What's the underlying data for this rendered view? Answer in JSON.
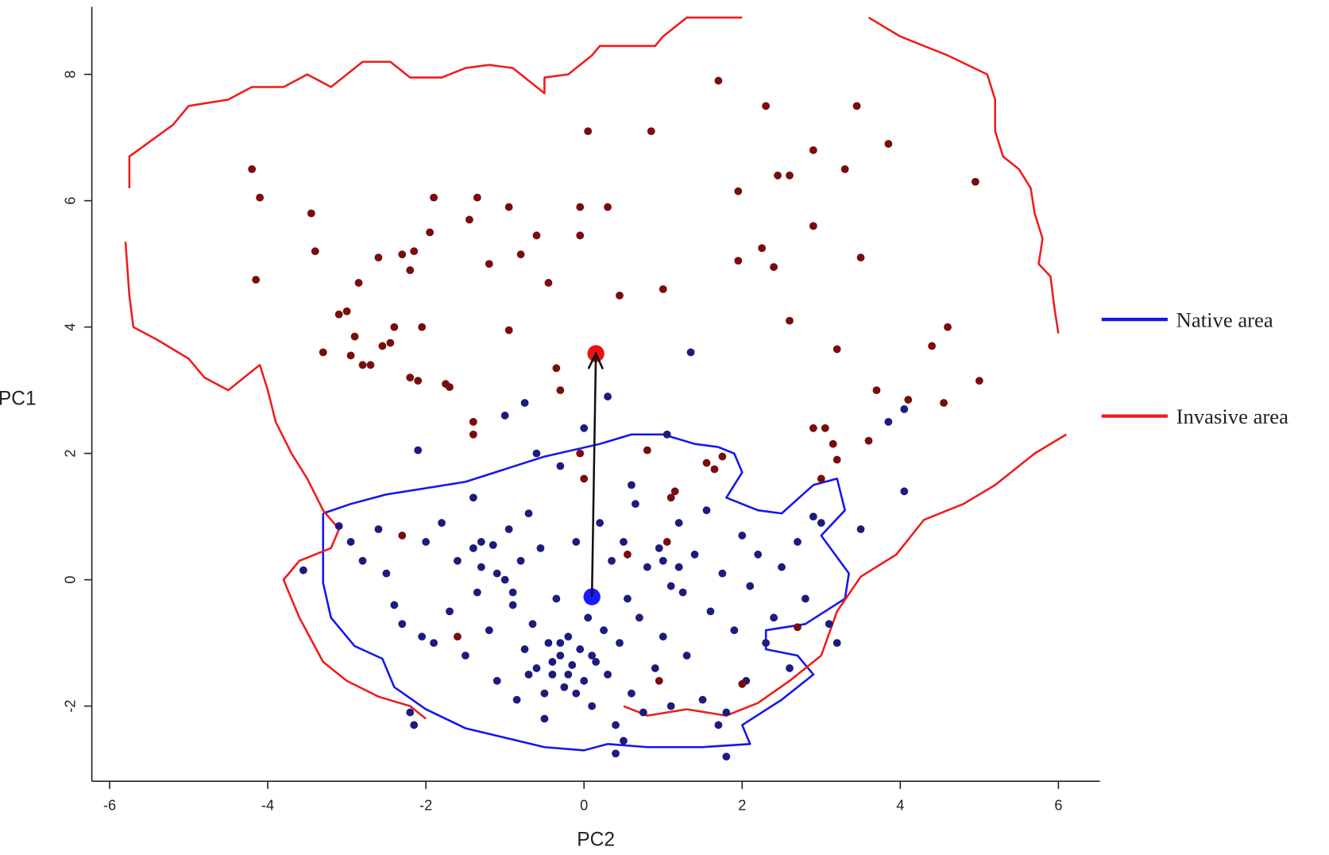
{
  "chart_data": {
    "type": "scatter",
    "x_label": "PC2",
    "y_label": "PC1",
    "xlim": [
      -6.225,
      6.525
    ],
    "ylim": [
      -3.19,
      9.07
    ],
    "xticks": [
      -6,
      -4,
      -2,
      0,
      2,
      4,
      6
    ],
    "yticks": [
      -2,
      0,
      2,
      4,
      6,
      8
    ],
    "legend": "right",
    "contours": [
      {
        "name": "Native area",
        "color": "#1515f0",
        "x": [
          -3.3,
          -2.95,
          -2.5,
          -2.0,
          -1.5,
          -1.0,
          -0.5,
          0.2,
          0.6,
          1.0,
          1.4,
          1.7,
          1.9,
          2.0,
          1.8,
          2.2,
          2.5,
          2.9,
          3.2,
          3.3,
          3.0,
          3.35,
          3.3,
          2.8,
          2.3,
          2.3,
          2.7,
          2.9,
          2.5,
          2.0,
          2.1,
          1.5,
          0.8,
          0.3,
          0.0,
          -0.5,
          -1.0,
          -1.5,
          -2.0,
          -2.4,
          -2.55,
          -2.9,
          -3.2,
          -3.3,
          -3.3,
          -3.3
        ],
        "y": [
          1.05,
          1.2,
          1.35,
          1.45,
          1.55,
          1.75,
          1.95,
          2.15,
          2.3,
          2.3,
          2.15,
          2.1,
          2.0,
          1.7,
          1.3,
          1.1,
          1.05,
          1.5,
          1.6,
          1.1,
          0.7,
          0.1,
          -0.3,
          -0.7,
          -0.8,
          -1.1,
          -1.2,
          -1.5,
          -1.9,
          -2.3,
          -2.6,
          -2.65,
          -2.65,
          -2.6,
          -2.7,
          -2.65,
          -2.5,
          -2.35,
          -2.05,
          -1.7,
          -1.25,
          -1.05,
          -0.6,
          -0.05,
          0.5,
          1.05
        ]
      },
      {
        "name": "Invasive area",
        "color": "#ee1c1c",
        "x": [
          -2.0,
          -2.2,
          -2.6,
          -3.0,
          -3.3,
          -3.6,
          -3.8,
          -3.6,
          -3.2,
          -3.1,
          -3.3,
          -3.5,
          -3.7,
          -3.9,
          -4.0,
          -4.1,
          -4.5,
          -4.8,
          -5.0,
          -5.4,
          -5.7,
          -5.75,
          -5.8,
          null,
          -5.75,
          -5.75,
          -5.2,
          -5.0,
          -4.5,
          -4.2,
          -3.8,
          -3.5,
          -3.2,
          -2.8,
          -2.45,
          -2.2,
          -1.8,
          -1.5,
          -1.2,
          -0.9,
          -0.5,
          -0.5,
          -0.2,
          0.1,
          0.2,
          0.9,
          1.0,
          1.3,
          2.0,
          null,
          3.6,
          4.0,
          4.6,
          5.1,
          5.2,
          5.2,
          5.3,
          5.5,
          5.65,
          5.7,
          5.8,
          5.75,
          5.9,
          5.95,
          6.0,
          null,
          6.1,
          5.7,
          5.2,
          4.8,
          4.3,
          3.95,
          3.5,
          3.2,
          3.0,
          2.6,
          2.2,
          1.8,
          1.3,
          0.8,
          0.5
        ],
        "y": [
          -2.2,
          -2.0,
          -1.85,
          -1.6,
          -1.3,
          -0.6,
          0.0,
          0.3,
          0.5,
          0.8,
          1.1,
          1.6,
          2.0,
          2.5,
          3.0,
          3.4,
          3.0,
          3.2,
          3.5,
          3.8,
          4.0,
          4.5,
          5.35,
          null,
          6.2,
          6.7,
          7.2,
          7.5,
          7.6,
          7.8,
          7.8,
          8.0,
          7.8,
          8.2,
          8.2,
          7.95,
          7.95,
          8.1,
          8.15,
          8.1,
          7.7,
          7.95,
          8.0,
          8.3,
          8.45,
          8.45,
          8.6,
          8.9,
          8.9,
          null,
          8.9,
          8.6,
          8.3,
          8.0,
          7.6,
          7.1,
          6.7,
          6.5,
          6.2,
          5.8,
          5.4,
          5.0,
          4.8,
          4.3,
          3.9,
          null,
          2.3,
          2.0,
          1.5,
          1.2,
          0.95,
          0.4,
          0.05,
          -0.5,
          -1.2,
          -1.6,
          -1.95,
          -2.15,
          -2.05,
          -2.15,
          -2.0
        ]
      }
    ],
    "points": [
      {
        "color": "#1c1c7e",
        "x": [
          -3.55,
          -3.1,
          -2.95,
          -2.8,
          -2.6,
          -2.5,
          -2.4,
          -2.3,
          -2.2,
          -2.15,
          -2.05,
          -2.0,
          -1.9,
          -1.8,
          -1.7,
          -1.6,
          -1.5,
          -1.4,
          -1.35,
          -1.3,
          -1.2,
          -1.15,
          -1.1,
          -1.0,
          -0.95,
          -0.9,
          -0.85,
          -0.8,
          -0.75,
          -0.7,
          -0.65,
          -0.6,
          -0.55,
          -0.5,
          -0.45,
          -0.4,
          -0.35,
          -0.3,
          -0.25,
          -0.2,
          -0.15,
          -0.1,
          -0.05,
          0.0,
          0.05,
          0.1,
          0.15,
          0.2,
          0.25,
          0.3,
          0.35,
          0.4,
          0.45,
          0.5,
          0.55,
          0.6,
          0.65,
          0.7,
          0.75,
          0.8,
          0.9,
          0.95,
          1.0,
          1.05,
          1.1,
          1.2,
          1.25,
          1.3,
          1.35,
          1.4,
          1.5,
          1.55,
          1.6,
          1.7,
          1.75,
          1.8,
          1.9,
          2.0,
          2.05,
          2.1,
          2.2,
          2.3,
          2.4,
          2.5,
          2.6,
          2.7,
          2.8,
          2.9,
          3.0,
          3.1,
          3.2,
          3.5,
          3.85,
          4.05,
          4.05,
          0.0,
          -0.6,
          -0.75,
          -1.0,
          -2.1,
          0.3,
          -1.4,
          -0.3,
          0.6,
          1.8,
          0.4,
          0.5,
          -0.5,
          -0.7,
          -0.2,
          0.1,
          -0.4,
          -0.1,
          -0.3,
          -0.9,
          -1.3,
          -1.1,
          1.0,
          1.2,
          1.1
        ],
        "y": [
          0.15,
          0.85,
          0.6,
          0.3,
          0.8,
          0.1,
          -0.4,
          -0.7,
          -2.1,
          -2.3,
          -0.9,
          0.6,
          -1.0,
          0.9,
          -0.5,
          0.3,
          -1.2,
          0.5,
          -0.2,
          0.2,
          -0.8,
          0.55,
          -1.6,
          0.0,
          0.8,
          -0.4,
          -1.9,
          0.3,
          -1.1,
          1.05,
          -0.7,
          -1.4,
          0.5,
          -2.2,
          -1.0,
          -1.5,
          -0.3,
          -1.2,
          -1.7,
          -0.9,
          -1.35,
          0.6,
          -1.1,
          -1.6,
          -0.6,
          -2.0,
          -1.3,
          0.9,
          -0.8,
          -1.5,
          0.3,
          -2.3,
          -1.0,
          0.6,
          -0.3,
          -1.8,
          1.2,
          -0.6,
          -2.1,
          0.2,
          -1.4,
          0.5,
          -0.9,
          2.3,
          -2.0,
          0.9,
          -0.2,
          -1.2,
          3.6,
          0.4,
          -1.9,
          1.1,
          -0.5,
          -2.3,
          0.1,
          -2.1,
          -0.8,
          0.7,
          -1.6,
          -0.1,
          0.4,
          -1.0,
          -0.6,
          0.2,
          -1.4,
          0.6,
          -0.3,
          1.0,
          0.9,
          -0.7,
          -1.0,
          0.8,
          2.5,
          1.4,
          2.7,
          2.4,
          2.0,
          2.8,
          2.6,
          2.05,
          2.9,
          1.3,
          1.8,
          1.5,
          -2.8,
          -2.75,
          -2.55,
          -1.8,
          -1.5,
          -1.5,
          -1.2,
          -1.3,
          -1.8,
          -1.0,
          -0.2,
          0.6,
          0.1,
          0.3,
          0.2,
          -0.1
        ]
      },
      {
        "color": "#7a0c0c",
        "x": [
          -4.2,
          -4.1,
          -3.45,
          -3.4,
          -4.15,
          -3.3,
          -3.1,
          -3.0,
          -2.95,
          -2.9,
          -2.85,
          -2.8,
          -2.7,
          -2.6,
          -2.55,
          -2.45,
          -2.4,
          -2.3,
          -2.2,
          -2.2,
          -2.15,
          -2.1,
          -2.05,
          -1.95,
          -1.9,
          -1.75,
          -1.7,
          -1.45,
          -1.4,
          -1.4,
          -1.35,
          -1.2,
          -0.95,
          -0.95,
          -0.8,
          -0.6,
          -0.45,
          -0.35,
          -0.3,
          -0.05,
          -0.05,
          0.0,
          -0.05,
          0.05,
          0.3,
          0.45,
          0.55,
          0.8,
          0.85,
          1.0,
          1.05,
          1.15,
          1.1,
          1.55,
          1.65,
          1.7,
          1.75,
          1.95,
          1.95,
          2.25,
          2.3,
          2.4,
          2.45,
          2.6,
          2.6,
          2.9,
          2.9,
          2.9,
          3.05,
          3.0,
          3.15,
          3.2,
          3.2,
          3.3,
          3.45,
          3.5,
          3.7,
          3.6,
          3.85,
          4.1,
          4.4,
          4.6,
          4.55,
          4.95,
          5.0,
          -2.3,
          -1.6,
          0.95,
          2.7,
          2.0
        ],
        "y": [
          6.5,
          6.05,
          5.8,
          5.2,
          4.75,
          3.6,
          4.2,
          4.25,
          3.55,
          3.85,
          4.7,
          3.4,
          3.4,
          5.1,
          3.7,
          3.75,
          4.0,
          5.15,
          4.9,
          3.2,
          5.2,
          3.15,
          4.0,
          5.5,
          6.05,
          3.1,
          3.05,
          5.7,
          2.5,
          2.3,
          6.05,
          5.0,
          5.9,
          3.95,
          5.15,
          5.45,
          4.7,
          3.35,
          3.0,
          5.9,
          5.45,
          1.6,
          2.0,
          7.1,
          5.9,
          4.5,
          0.4,
          2.05,
          7.1,
          4.6,
          0.6,
          1.4,
          1.3,
          1.85,
          1.75,
          7.9,
          1.95,
          6.15,
          5.05,
          5.25,
          7.5,
          4.95,
          6.4,
          6.4,
          4.1,
          6.8,
          5.6,
          2.4,
          2.4,
          1.6,
          2.15,
          1.9,
          3.65,
          6.5,
          7.5,
          5.1,
          3.0,
          2.2,
          6.9,
          2.85,
          3.7,
          4.0,
          2.8,
          6.3,
          3.15,
          0.7,
          -0.9,
          -1.6,
          -0.75,
          -1.65
        ]
      }
    ],
    "centroids": [
      {
        "color": "#1a1aff",
        "x": [
          0.1
        ],
        "y": [
          -0.27
        ]
      },
      {
        "color": "#ee1111",
        "x": [
          0.15
        ],
        "y": [
          3.58
        ]
      }
    ],
    "arrow_color": "#111111"
  }
}
